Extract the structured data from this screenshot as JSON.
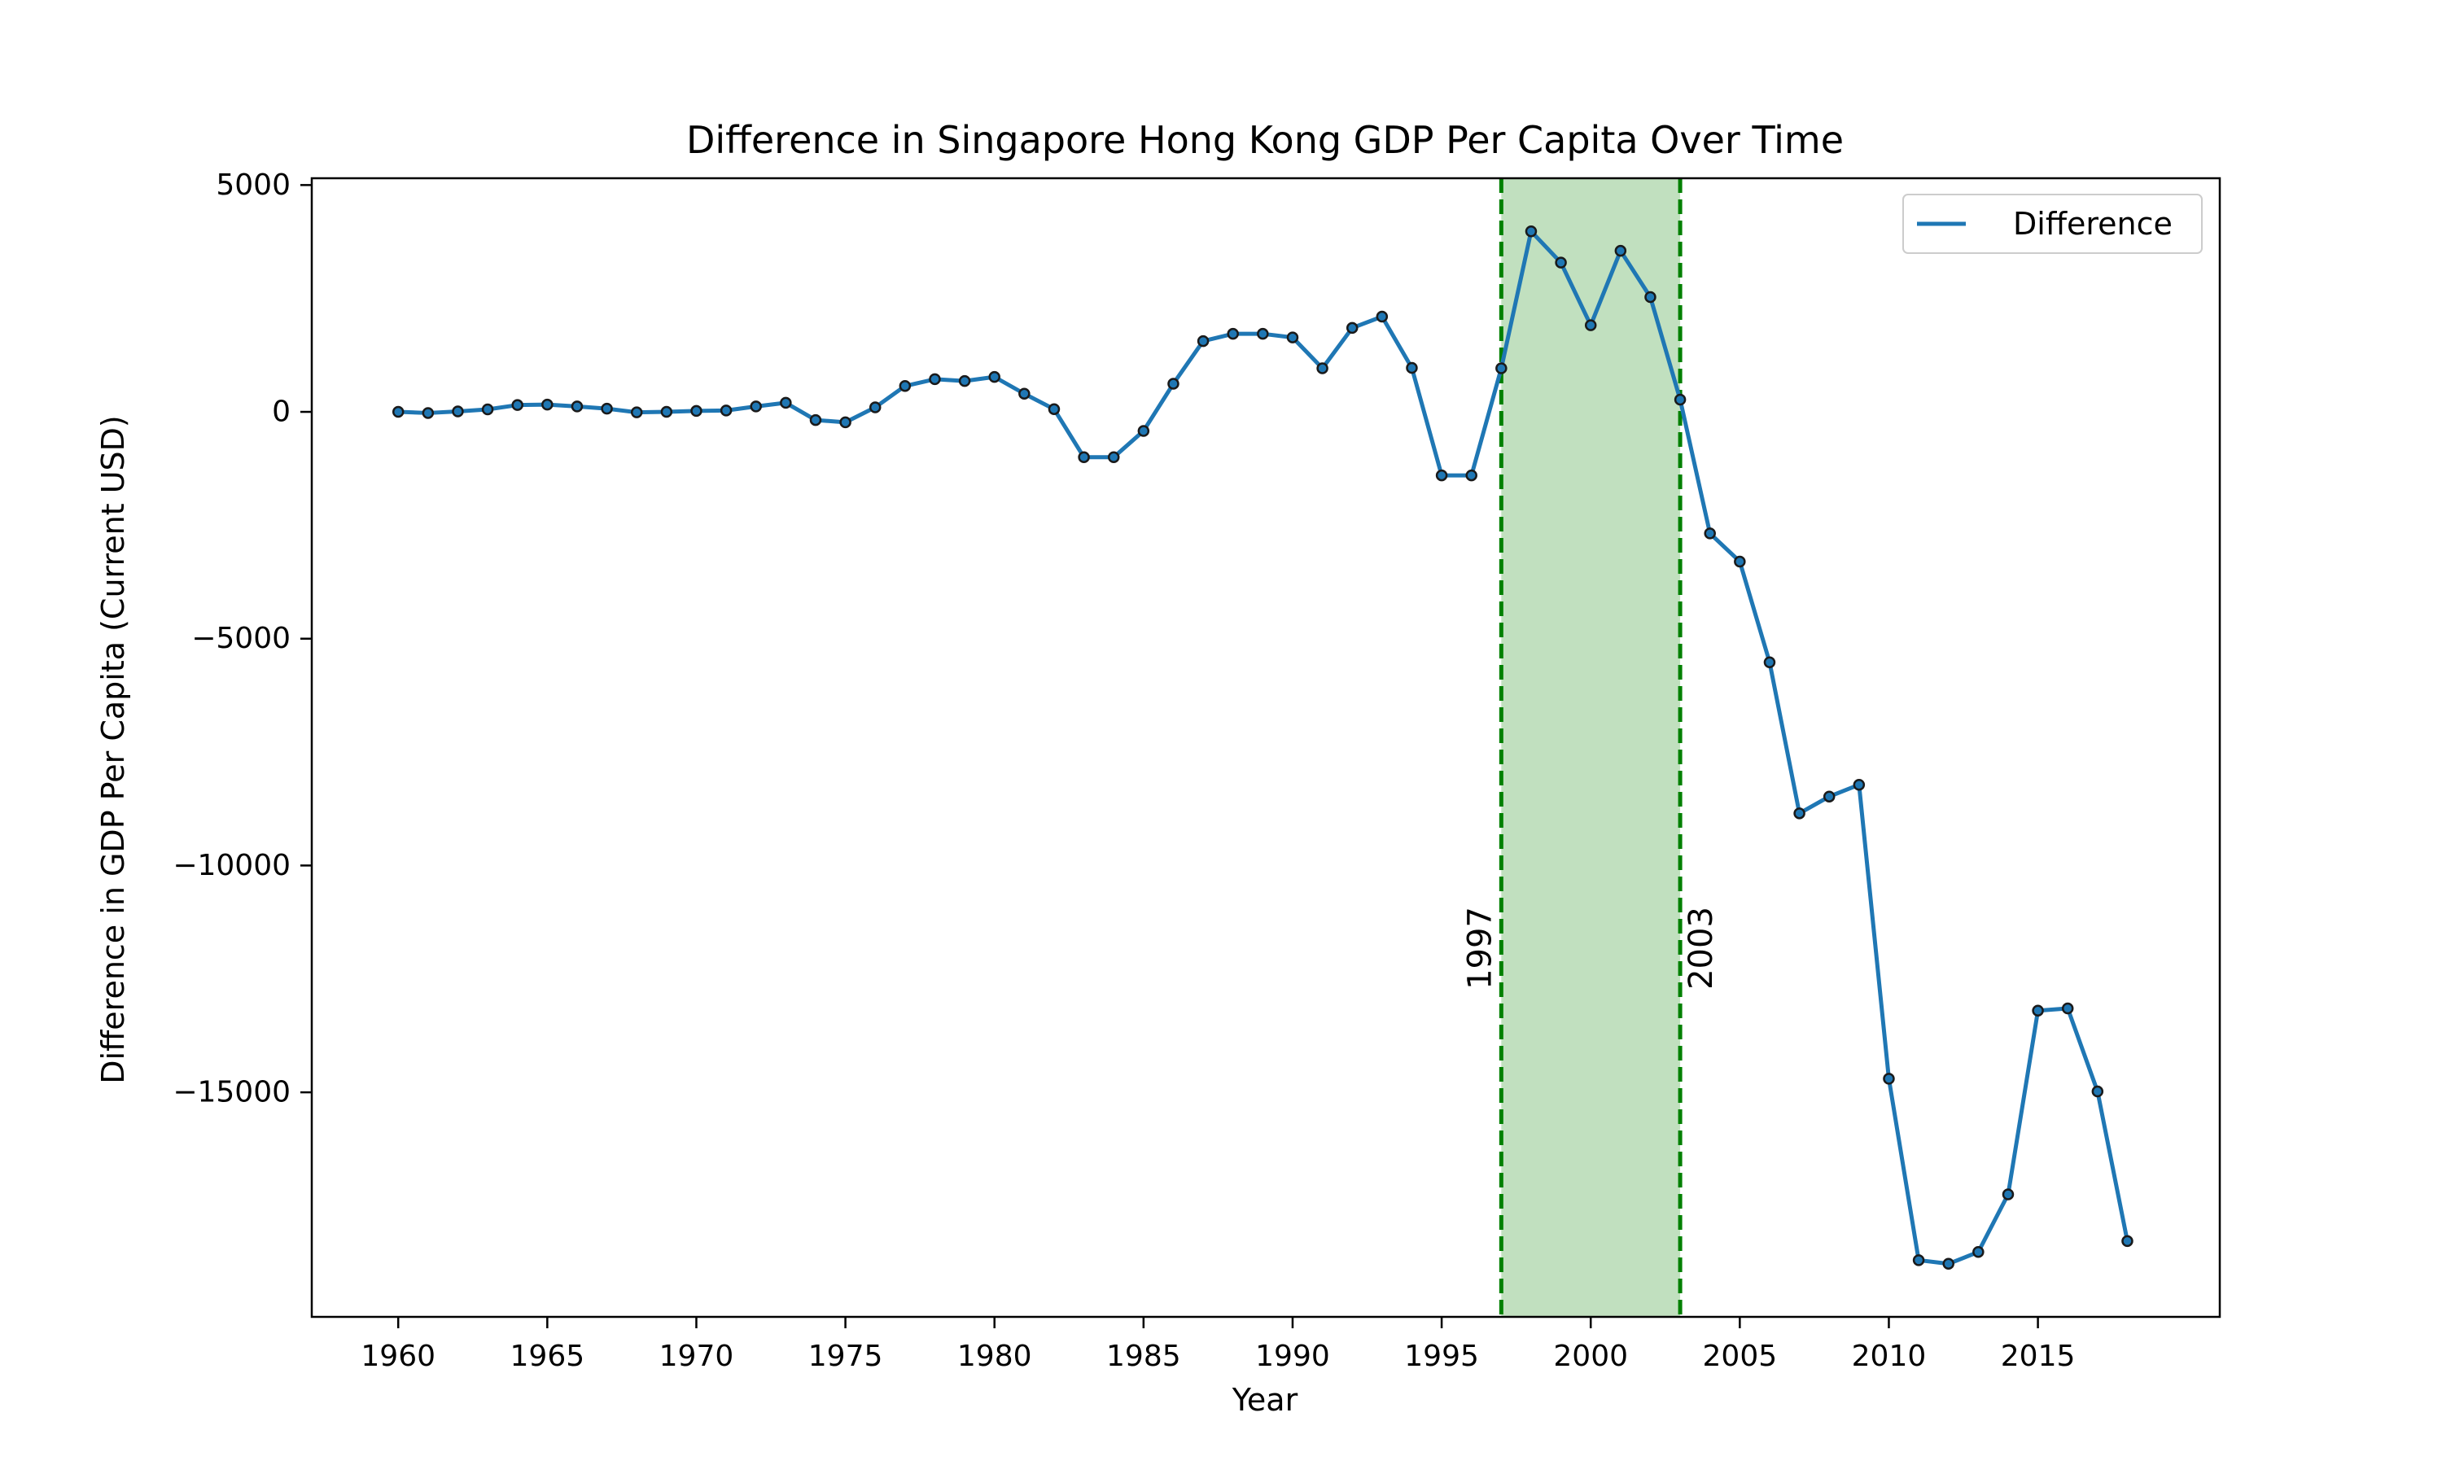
{
  "chart_data": {
    "type": "line",
    "title": "Difference in Singapore Hong Kong GDP Per Capita Over Time",
    "xlabel": "Year",
    "ylabel": "Difference in GDP Per Capita (Current USD)",
    "xlim": [
      1957.1,
      2021.1
    ],
    "ylim": [
      -19950,
      5150
    ],
    "xticks": [
      1960,
      1965,
      1970,
      1975,
      1980,
      1985,
      1990,
      1995,
      2000,
      2005,
      2010,
      2015
    ],
    "yticks": [
      5000,
      0,
      -5000,
      -10000,
      -15000
    ],
    "ytick_labels": [
      "5000",
      "0",
      "−5000",
      "−10000",
      "−15000"
    ],
    "grid": false,
    "legend": {
      "position": "upper right",
      "entries": [
        "Difference"
      ]
    },
    "series": [
      {
        "name": "Difference",
        "color": "#1f77b4",
        "marker": "circle",
        "x": [
          1960,
          1961,
          1962,
          1963,
          1964,
          1965,
          1966,
          1967,
          1968,
          1969,
          1970,
          1971,
          1972,
          1973,
          1974,
          1975,
          1976,
          1977,
          1978,
          1979,
          1980,
          1981,
          1982,
          1983,
          1984,
          1985,
          1986,
          1987,
          1988,
          1989,
          1990,
          1991,
          1992,
          1993,
          1994,
          1995,
          1996,
          1997,
          1998,
          1999,
          2000,
          2001,
          2002,
          2003,
          2004,
          2005,
          2006,
          2007,
          2008,
          2009,
          2010,
          2011,
          2012,
          2013,
          2014,
          2015,
          2016,
          2017,
          2018
        ],
        "y": [
          0,
          -25,
          10,
          55,
          150,
          160,
          120,
          70,
          -10,
          0,
          20,
          30,
          120,
          200,
          -180,
          -230,
          100,
          570,
          720,
          680,
          770,
          400,
          60,
          -1000,
          -1000,
          -420,
          620,
          1560,
          1720,
          1720,
          1640,
          960,
          1850,
          2100,
          970,
          -1400,
          -1400,
          960,
          3980,
          3290,
          1910,
          3550,
          2530,
          270,
          -2680,
          -3300,
          -5520,
          -8850,
          -8480,
          -8220,
          -14700,
          -18700,
          -18780,
          -18520,
          -17250,
          -13200,
          -13150,
          -14980,
          -18280
        ]
      }
    ],
    "shaded_region": {
      "x_start": 1997,
      "x_end": 2003,
      "color": "#c1e0bf"
    },
    "vlines": [
      {
        "x": 1997,
        "label": "1997",
        "color": "#008000",
        "style": "dashed"
      },
      {
        "x": 2003,
        "label": "2003",
        "color": "#008000",
        "style": "dashed"
      }
    ]
  }
}
